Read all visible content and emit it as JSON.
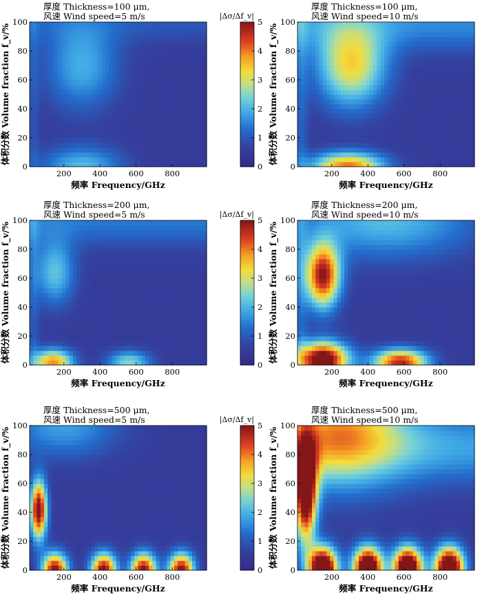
{
  "figure": {
    "colorbar_title": "|Δσ/Δf_v|",
    "xlabel": "频率 Frequency/GHz",
    "ylabel": "体积分数 Volume fraction f_v/%"
  },
  "chart_data": [
    {
      "type": "heatmap",
      "title_line1": "厚度 Thickness=100 μm,",
      "title_line2": "风速 Wind speed=5 m/s",
      "xlabel": "频率 Frequency/GHz",
      "ylabel": "体积分数 Volume fraction f_v/%",
      "xlim": [
        10,
        990
      ],
      "ylim": [
        0,
        100
      ],
      "xticks": [
        200,
        400,
        600,
        800
      ],
      "yticks": [
        0,
        20,
        40,
        60,
        80,
        100
      ],
      "colorbar": {
        "title": "|Δσ/Δf_v|",
        "min": 0,
        "max": 5,
        "ticks": [
          0,
          1,
          2,
          3,
          4,
          5
        ],
        "colormap": "parula-jet"
      },
      "thickness_um": 100,
      "wind_speed_ms": 5
    },
    {
      "type": "heatmap",
      "title_line1": "厚度 Thickness=100 μm,",
      "title_line2": "风速 Wind speed=10 m/s",
      "xlabel": "频率 Frequency/GHz",
      "ylabel": "体积分数 Volume fraction f_v/%",
      "xlim": [
        10,
        990
      ],
      "ylim": [
        0,
        100
      ],
      "xticks": [
        200,
        400,
        600,
        800
      ],
      "yticks": [
        0,
        20,
        40,
        60,
        80,
        100
      ],
      "colorbar": {
        "title": "|Δσ/Δf_v|",
        "min": 0,
        "max": 5,
        "ticks": [
          0,
          1,
          2,
          3,
          4,
          5
        ],
        "colormap": "parula-jet"
      },
      "thickness_um": 100,
      "wind_speed_ms": 10
    },
    {
      "type": "heatmap",
      "title_line1": "厚度 Thickness=200 μm,",
      "title_line2": "风速 Wind speed=5 m/s",
      "xlabel": "频率 Frequency/GHz",
      "ylabel": "体积分数 Volume fraction f_v/%",
      "xlim": [
        10,
        990
      ],
      "ylim": [
        0,
        100
      ],
      "xticks": [
        200,
        400,
        600,
        800
      ],
      "yticks": [
        0,
        20,
        40,
        60,
        80,
        100
      ],
      "colorbar": {
        "title": "|Δσ/Δf_v|",
        "min": 0,
        "max": 5,
        "ticks": [
          0,
          1,
          2,
          3,
          4,
          5
        ],
        "colormap": "parula-jet"
      },
      "thickness_um": 200,
      "wind_speed_ms": 5
    },
    {
      "type": "heatmap",
      "title_line1": "厚度 Thickness=200 μm,",
      "title_line2": "风速 Wind speed=10 m/s",
      "xlabel": "频率 Frequency/GHz",
      "ylabel": "体积分数 Volume fraction f_v/%",
      "xlim": [
        10,
        990
      ],
      "ylim": [
        0,
        100
      ],
      "xticks": [
        200,
        400,
        600,
        800
      ],
      "yticks": [
        0,
        20,
        40,
        60,
        80,
        100
      ],
      "colorbar": {
        "title": "|Δσ/Δf_v|",
        "min": 0,
        "max": 5,
        "ticks": [
          0,
          1,
          2,
          3,
          4,
          5
        ],
        "colormap": "parula-jet"
      },
      "thickness_um": 200,
      "wind_speed_ms": 10
    },
    {
      "type": "heatmap",
      "title_line1": "厚度 Thickness=500 μm,",
      "title_line2": "风速 Wind speed=5 m/s",
      "xlabel": "频率 Frequency/GHz",
      "ylabel": "体积分数 Volume fraction f_v/%",
      "xlim": [
        10,
        990
      ],
      "ylim": [
        0,
        100
      ],
      "xticks": [
        200,
        400,
        600,
        800
      ],
      "yticks": [
        0,
        20,
        40,
        60,
        80,
        100
      ],
      "colorbar": {
        "title": "|Δσ/Δf_v|",
        "min": 0,
        "max": 5,
        "ticks": [
          0,
          1,
          2,
          3,
          4,
          5
        ],
        "colormap": "parula-jet"
      },
      "thickness_um": 500,
      "wind_speed_ms": 5
    },
    {
      "type": "heatmap",
      "title_line1": "厚度 Thickness=500 μm,",
      "title_line2": "风速 Wind speed=10 m/s",
      "xlabel": "频率 Frequency/GHz",
      "ylabel": "体积分数 Volume fraction f_v/%",
      "xlim": [
        10,
        990
      ],
      "ylim": [
        0,
        100
      ],
      "xticks": [
        200,
        400,
        600,
        800
      ],
      "yticks": [
        0,
        20,
        40,
        60,
        80,
        100
      ],
      "colorbar": {
        "title": "|Δσ/Δf_v|",
        "min": 0,
        "max": 5,
        "ticks": [
          0,
          1,
          2,
          3,
          4,
          5
        ],
        "colormap": "parula-jet"
      },
      "thickness_um": 500,
      "wind_speed_ms": 10
    }
  ]
}
